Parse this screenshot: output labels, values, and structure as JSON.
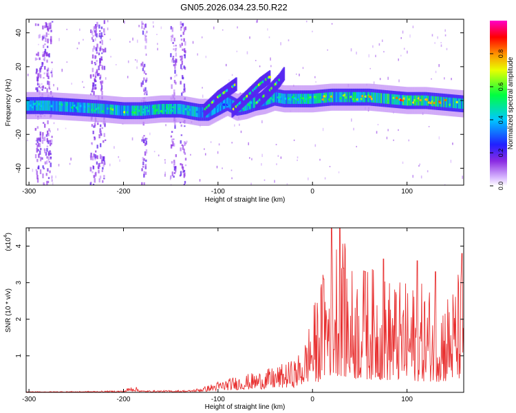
{
  "title": "GN05.2026.034.23.50.R22",
  "colors": {
    "snr_line": "#e83030",
    "axis": "#000000"
  },
  "chart_data": [
    {
      "type": "heatmap",
      "name": "spectrogram",
      "xlabel": "Height of straight line (km)",
      "ylabel": "Frequency (Hz)",
      "xlim": [
        -303,
        160
      ],
      "ylim": [
        -50,
        48
      ],
      "x_ticks": [
        -300,
        -200,
        -100,
        0,
        100
      ],
      "x_tick_labels": [
        "-300",
        "-200",
        "-100",
        "0",
        "100"
      ],
      "y_ticks": [
        -40,
        -20,
        0,
        20,
        40
      ],
      "y_tick_labels": [
        "-40",
        "-20",
        "0",
        "20",
        "40"
      ],
      "colorbar": {
        "label": "Normalized spectral amplitude",
        "range": [
          0,
          1
        ],
        "ticks": [
          0.0,
          0.2,
          0.4,
          0.6,
          0.8
        ],
        "tick_labels": [
          "0.0",
          "0.2",
          "0.4",
          "0.6",
          "0.8"
        ],
        "colormap": [
          "#c8c8f0",
          "#a050ff",
          "#3030ff",
          "#00d8ff",
          "#00ff60",
          "#f0ff00",
          "#ff8000",
          "#ff0000",
          "#ff00c0"
        ]
      },
      "ridge": {
        "x": [
          -303,
          -280,
          -250,
          -220,
          -200,
          -180,
          -160,
          -140,
          -120,
          -110,
          -100,
          -90,
          -80,
          -70,
          -60,
          -50,
          -40,
          -30,
          -20,
          0,
          20,
          40,
          60,
          80,
          100,
          120,
          140,
          160
        ],
        "freq": [
          -3,
          -3,
          -4,
          -5,
          -6,
          -6,
          -5,
          -5,
          -7,
          -7,
          -4,
          -1,
          -4,
          -3,
          -1,
          0,
          2,
          1,
          1,
          1,
          2,
          2,
          2,
          1,
          0,
          0,
          -1,
          -2
        ],
        "amplitude": [
          0.4,
          0.45,
          0.5,
          0.55,
          0.7,
          0.6,
          0.55,
          0.5,
          0.45,
          0.35,
          0.35,
          0.3,
          0.5,
          0.55,
          0.5,
          0.5,
          0.45,
          0.45,
          0.55,
          0.7,
          0.75,
          0.7,
          0.75,
          0.8,
          0.8,
          0.75,
          0.8,
          0.7
        ]
      },
      "branches": [
        {
          "x": [
            -115,
            -100,
            -85,
            -80
          ],
          "freq": [
            -6,
            2,
            8,
            10
          ]
        },
        {
          "x": [
            -85,
            -70,
            -55,
            -45
          ],
          "freq": [
            -6,
            2,
            10,
            14
          ]
        },
        {
          "x": [
            -60,
            -45,
            -35,
            -30
          ],
          "freq": [
            -2,
            6,
            12,
            16
          ]
        }
      ],
      "scatter_columns_x": [
        -290,
        -283,
        -278,
        -232,
        -227,
        -222,
        -178,
        -147,
        -137
      ]
    },
    {
      "type": "line",
      "name": "snr",
      "xlabel": "Height of straight line (km)",
      "ylabel": "SNR (10 * v/v)",
      "exponent_label": "(x10",
      "exponent_power": "4",
      "exponent_close": ")",
      "xlim": [
        -303,
        160
      ],
      "ylim": [
        0,
        4.5
      ],
      "x_ticks": [
        -300,
        -200,
        -100,
        0,
        100
      ],
      "x_tick_labels": [
        "-300",
        "-200",
        "-100",
        "0",
        "100"
      ],
      "y_ticks": [
        1,
        2,
        3,
        4
      ],
      "y_tick_labels": [
        "1",
        "2",
        "3",
        "4"
      ],
      "envelope": {
        "x": [
          -303,
          -240,
          -200,
          -190,
          -180,
          -130,
          -115,
          -100,
          -80,
          -60,
          -40,
          -20,
          -10,
          0,
          10,
          20,
          30,
          40,
          60,
          80,
          100,
          120,
          140,
          150,
          160
        ],
        "y": [
          0.02,
          0.03,
          0.05,
          0.2,
          0.05,
          0.06,
          0.15,
          0.3,
          0.45,
          0.55,
          0.7,
          0.9,
          1.2,
          2.3,
          3.2,
          4.5,
          4.5,
          3.5,
          3.5,
          3.2,
          3.0,
          3.0,
          2.8,
          3.0,
          3.8
        ]
      },
      "peaks": [
        {
          "x": 20,
          "y": 4.5
        },
        {
          "x": 29,
          "y": 4.5
        },
        {
          "x": 75,
          "y": 3.65
        },
        {
          "x": 111,
          "y": 3.6
        },
        {
          "x": 158,
          "y": 3.8
        },
        {
          "x": 33,
          "y": 3.4
        },
        {
          "x": 12,
          "y": 3.1
        },
        {
          "x": 56,
          "y": 3.3
        },
        {
          "x": 130,
          "y": 3.3
        }
      ],
      "series": [
        {
          "name": "SNR",
          "color": "#e83030"
        }
      ]
    }
  ]
}
